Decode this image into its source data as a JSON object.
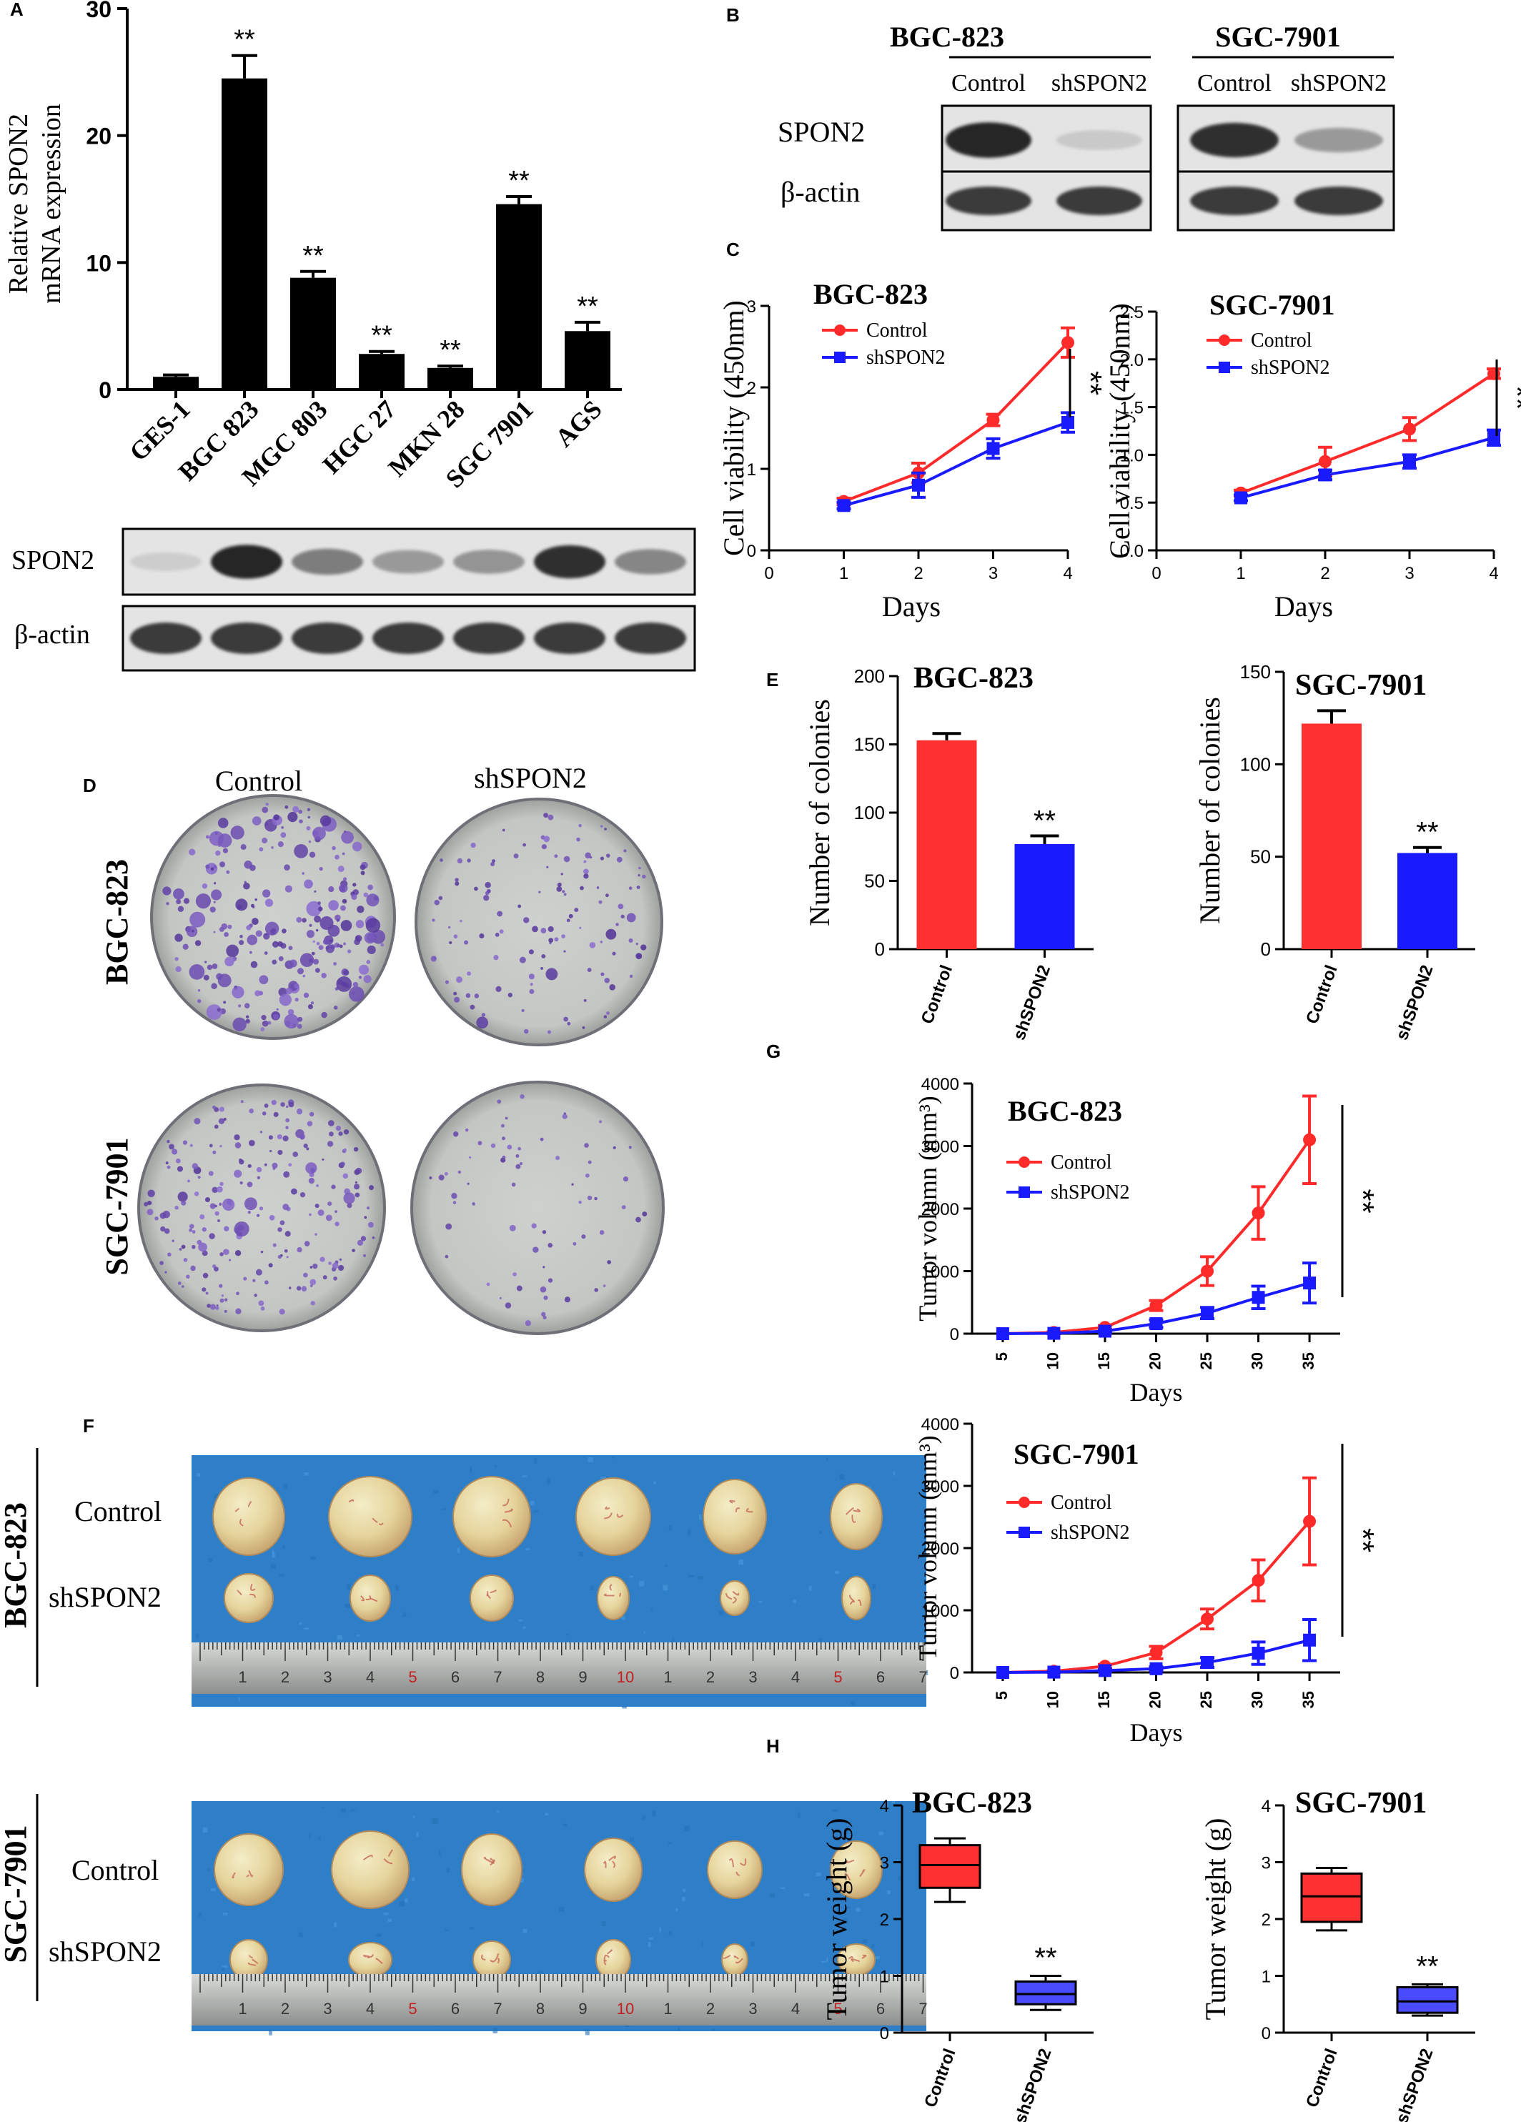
{
  "panels": {
    "A": {
      "letter": "A",
      "ylabel_line1": "Relative SPON2",
      "ylabel_line2": "mRNA expression",
      "blot_labels": [
        "SPON2",
        "β-actin"
      ],
      "chart": {
        "type": "bar",
        "categories": [
          "GES-1",
          "BGC 823",
          "MGC 803",
          "HGC 27",
          "MKN 28",
          "SGC 7901",
          "AGS"
        ],
        "values": [
          1.0,
          24.5,
          8.8,
          2.8,
          1.7,
          14.6,
          4.6
        ],
        "errors": [
          0.15,
          1.8,
          0.5,
          0.2,
          0.15,
          0.6,
          0.7
        ],
        "significance": [
          "",
          "**",
          "**",
          "**",
          "**",
          "**",
          "**"
        ],
        "yticks": [
          0,
          10,
          20,
          30
        ],
        "ylim": [
          0,
          30
        ],
        "color": "#000000"
      },
      "blot_intensity": {
        "SPON2": [
          0.08,
          0.95,
          0.5,
          0.35,
          0.38,
          0.9,
          0.45
        ],
        "beta_actin": [
          0.85,
          0.85,
          0.85,
          0.85,
          0.85,
          0.85,
          0.85
        ]
      }
    },
    "B": {
      "letter": "B",
      "cell_lines": [
        "BGC-823",
        "SGC-7901"
      ],
      "lanes": [
        "Control",
        "shSPON2"
      ],
      "blot_labels": [
        "SPON2",
        "β-actin"
      ],
      "blot_intensity": {
        "BGC-823": {
          "SPON2": [
            0.95,
            0.1
          ],
          "beta_actin": [
            0.85,
            0.85
          ]
        },
        "SGC-7901": {
          "SPON2": [
            0.9,
            0.35
          ],
          "beta_actin": [
            0.85,
            0.85
          ]
        }
      }
    },
    "C": {
      "letter": "C",
      "charts": [
        {
          "type": "line",
          "title": "BGC-823",
          "xlabel": "Days",
          "ylabel": "Cell viability (450nm)",
          "x": [
            1,
            2,
            3,
            4
          ],
          "xticks": [
            0,
            1,
            2,
            3,
            4
          ],
          "xlim": [
            0,
            4
          ],
          "yticks": [
            0,
            1,
            2,
            3
          ],
          "ylim": [
            0,
            3
          ],
          "series": [
            {
              "name": "Control",
              "color": "#ff2b2b",
              "values": [
                0.6,
                0.95,
                1.6,
                2.55
              ],
              "errors": [
                0.04,
                0.12,
                0.07,
                0.18
              ]
            },
            {
              "name": "shSPON2",
              "color": "#1a1aff",
              "values": [
                0.55,
                0.8,
                1.25,
                1.57
              ],
              "errors": [
                0.04,
                0.15,
                0.12,
                0.12
              ]
            }
          ],
          "significance": "**"
        },
        {
          "type": "line",
          "title": "SGC-7901",
          "xlabel": "Days",
          "ylabel": "Cell viability (450nm)",
          "x": [
            1,
            2,
            3,
            4
          ],
          "xticks": [
            0,
            1,
            2,
            3,
            4
          ],
          "xlim": [
            0,
            4
          ],
          "yticks": [
            0.0,
            0.5,
            1.0,
            1.5,
            2.0,
            2.5
          ],
          "ytick_labels": [
            "0.0",
            "0.5",
            "1.0",
            "1.5",
            "2.0",
            "2.5"
          ],
          "ylim": [
            0,
            2.5
          ],
          "series": [
            {
              "name": "Control",
              "color": "#ff2b2b",
              "values": [
                0.6,
                0.93,
                1.27,
                1.85
              ],
              "errors": [
                0.03,
                0.15,
                0.12,
                0.05
              ]
            },
            {
              "name": "shSPON2",
              "color": "#1a1aff",
              "values": [
                0.55,
                0.79,
                0.93,
                1.18
              ],
              "errors": [
                0.03,
                0.05,
                0.07,
                0.08
              ]
            }
          ],
          "significance": "**"
        }
      ]
    },
    "D": {
      "letter": "D",
      "col_labels": [
        "Control",
        "shSPON2"
      ],
      "row_labels": [
        "BGC-823",
        "SGC-7901"
      ]
    },
    "E": {
      "letter": "E",
      "charts": [
        {
          "type": "bar",
          "title": "BGC-823",
          "ylabel": "Number of colonies",
          "categories": [
            "Control",
            "shSPON2"
          ],
          "values": [
            153,
            77
          ],
          "errors": [
            5,
            6
          ],
          "colors": [
            "#ff3030",
            "#1a1aff"
          ],
          "significance": [
            "",
            "**"
          ],
          "yticks": [
            0,
            50,
            100,
            150,
            200
          ],
          "ylim": [
            0,
            200
          ]
        },
        {
          "type": "bar",
          "title": "SGC-7901",
          "ylabel": "Number  of colonies",
          "categories": [
            "Control",
            "shSPON2"
          ],
          "values": [
            122,
            52
          ],
          "errors": [
            7,
            3
          ],
          "colors": [
            "#ff3030",
            "#1a1aff"
          ],
          "significance": [
            "",
            "**"
          ],
          "yticks": [
            0,
            50,
            100,
            150
          ],
          "ylim": [
            0,
            150
          ]
        }
      ]
    },
    "F": {
      "letter": "F",
      "groups": [
        {
          "cell_line": "BGC-823",
          "row_labels": [
            "Control",
            "shSPON2"
          ]
        },
        {
          "cell_line": "SGC-7901",
          "row_labels": [
            "Control",
            "shSPON2"
          ]
        }
      ],
      "ruler_numbers": [
        "1",
        "2",
        "3",
        "4",
        "5",
        "6",
        "7",
        "8",
        "9",
        "10",
        "1",
        "2",
        "3",
        "4",
        "5",
        "6",
        "7"
      ]
    },
    "G": {
      "letter": "G",
      "charts": [
        {
          "type": "line",
          "title": "BGC-823",
          "xlabel": "Days",
          "ylabel": "Tumor volumn (mm³)",
          "x": [
            5,
            10,
            15,
            20,
            25,
            30,
            35
          ],
          "xticks": [
            5,
            10,
            15,
            20,
            25,
            30,
            35
          ],
          "xlim": [
            2,
            38
          ],
          "yticks": [
            0,
            1000,
            2000,
            3000,
            4000
          ],
          "ylim": [
            0,
            4000
          ],
          "series": [
            {
              "name": "Control",
              "color": "#ff2b2b",
              "values": [
                0,
                20,
                100,
                450,
                1000,
                1930,
                3100
              ],
              "errors": [
                0,
                10,
                30,
                80,
                230,
                420,
                700
              ]
            },
            {
              "name": "shSPON2",
              "color": "#1a1aff",
              "values": [
                0,
                5,
                40,
                160,
                330,
                580,
                810
              ],
              "errors": [
                0,
                5,
                20,
                60,
                90,
                180,
                320
              ]
            }
          ],
          "significance": "**"
        },
        {
          "type": "line",
          "title": "SGC-7901",
          "xlabel": "Days",
          "ylabel": "Tumor volumn (mm³)",
          "x": [
            5,
            10,
            15,
            20,
            25,
            30,
            35
          ],
          "xticks": [
            5,
            10,
            15,
            20,
            25,
            30,
            35
          ],
          "xlim": [
            2,
            38
          ],
          "yticks": [
            0,
            1000,
            2000,
            3000,
            4000
          ],
          "ylim": [
            0,
            4000
          ],
          "series": [
            {
              "name": "Control",
              "color": "#ff2b2b",
              "values": [
                0,
                20,
                100,
                320,
                860,
                1480,
                2430
              ],
              "errors": [
                0,
                10,
                30,
                100,
                160,
                330,
                700
              ]
            },
            {
              "name": "shSPON2",
              "color": "#1a1aff",
              "values": [
                0,
                5,
                30,
                60,
                160,
                310,
                520
              ],
              "errors": [
                0,
                5,
                15,
                30,
                80,
                180,
                330
              ]
            }
          ],
          "significance": "**"
        }
      ]
    },
    "H": {
      "letter": "H",
      "charts": [
        {
          "type": "box",
          "title": "BGC-823",
          "ylabel": "Tumor weight (g)",
          "categories": [
            "Control",
            "shSPON2"
          ],
          "boxes": [
            {
              "min": 2.3,
              "q1": 2.55,
              "median": 2.95,
              "q3": 3.3,
              "max": 3.42
            },
            {
              "min": 0.4,
              "q1": 0.5,
              "median": 0.68,
              "q3": 0.9,
              "max": 1.0
            }
          ],
          "colors": [
            "#ff3030",
            "#4a4aff"
          ],
          "significance": [
            "",
            "**"
          ],
          "yticks": [
            0,
            1,
            2,
            3,
            4
          ],
          "ylim": [
            0,
            4
          ]
        },
        {
          "type": "box",
          "title": "SGC-7901",
          "ylabel": "Tumor weight (g)",
          "categories": [
            "Control",
            "shSPON2"
          ],
          "boxes": [
            {
              "min": 1.8,
              "q1": 1.95,
              "median": 2.4,
              "q3": 2.8,
              "max": 2.9
            },
            {
              "min": 0.3,
              "q1": 0.35,
              "median": 0.55,
              "q3": 0.8,
              "max": 0.85
            }
          ],
          "colors": [
            "#ff3030",
            "#4a4aff"
          ],
          "significance": [
            "",
            "**"
          ],
          "yticks": [
            0,
            1,
            2,
            3,
            4
          ],
          "ylim": [
            0,
            4
          ]
        }
      ]
    }
  }
}
